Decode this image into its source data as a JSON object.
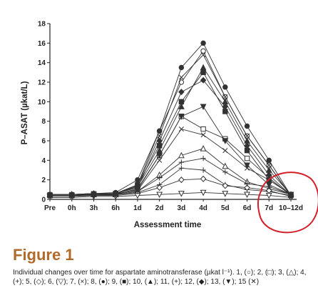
{
  "figure": {
    "title": "Figure 1",
    "caption": "Individual changes over time for aspartate aminotransferase (µkat l⁻¹). 1, (○); 2, (□); 3, (△); 4, (+); 5, (◇); 6, (▽); 7, (×); 8, (●); 9, (■); 10, (▲); 11, (+); 12, (◆); 13, (▼); 15 (✕)"
  },
  "colors": {
    "axis": "#222222",
    "series": "#333333",
    "annotation": "#d4202a",
    "title": "#b06a2a"
  },
  "chart_data": {
    "type": "line",
    "ylabel": "P–ASAT (µkat/L)",
    "xlabel": "Assessment time",
    "categories": [
      "Pre",
      "0h",
      "3h",
      "6h",
      "1d",
      "2d",
      "3d",
      "4d",
      "5d",
      "6d",
      "7d",
      "10–12d"
    ],
    "ylim": [
      0,
      18
    ],
    "yticks": [
      0,
      2,
      4,
      6,
      8,
      10,
      12,
      14,
      16,
      18
    ],
    "grid": false,
    "legend": "none",
    "annotation": "red-circle-around-10-12d",
    "series": [
      {
        "marker": "circle-open",
        "values": [
          0.5,
          0.5,
          0.5,
          0.6,
          1.5,
          7,
          12,
          15.2,
          10.5,
          6.5,
          3.5,
          0.3
        ]
      },
      {
        "marker": "square-open",
        "values": [
          0.4,
          0.4,
          0.5,
          0.5,
          1.1,
          4.5,
          8.5,
          7.2,
          6.2,
          4.2,
          2.2,
          0.4
        ]
      },
      {
        "marker": "triangle-open",
        "values": [
          0.5,
          0.5,
          0.5,
          0.5,
          0.8,
          2.5,
          4.5,
          5.2,
          3.4,
          1.8,
          1.1,
          0.5
        ]
      },
      {
        "marker": "plus",
        "values": [
          0.4,
          0.4,
          0.4,
          0.5,
          0.7,
          1.5,
          3.2,
          3.0,
          1.5,
          1.0,
          0.8,
          0.4
        ]
      },
      {
        "marker": "diamond-open",
        "values": [
          0.3,
          0.3,
          0.4,
          0.4,
          0.6,
          1.2,
          2.0,
          2.1,
          1.4,
          1.2,
          0.9,
          0.3
        ]
      },
      {
        "marker": "tri-down-open",
        "values": [
          0.2,
          0.2,
          0.3,
          0.3,
          0.4,
          0.5,
          0.6,
          0.7,
          0.6,
          0.5,
          0.4,
          0.2
        ]
      },
      {
        "marker": "x",
        "values": [
          0.5,
          0.5,
          0.6,
          0.6,
          0.9,
          4.0,
          7.2,
          6.6,
          5.0,
          3.2,
          2.0,
          0.5
        ]
      },
      {
        "marker": "circle-filled",
        "values": [
          0.5,
          0.5,
          0.6,
          0.7,
          2.0,
          7.0,
          13.5,
          16.0,
          11.5,
          7.5,
          4.0,
          0.4
        ]
      },
      {
        "marker": "square-filled",
        "values": [
          0.4,
          0.4,
          0.5,
          0.6,
          1.5,
          5.5,
          10.0,
          13.0,
          9.0,
          5.0,
          2.0,
          0.5
        ]
      },
      {
        "marker": "triangle-filled",
        "values": [
          0.5,
          0.5,
          0.5,
          0.6,
          1.3,
          5.0,
          9.5,
          13.5,
          10.0,
          6.0,
          3.0,
          0.5
        ]
      },
      {
        "marker": "plus",
        "values": [
          0.4,
          0.4,
          0.4,
          0.5,
          0.8,
          2.2,
          3.8,
          4.2,
          2.8,
          1.6,
          1.3,
          0.5
        ]
      },
      {
        "marker": "diamond-filled",
        "values": [
          0.5,
          0.5,
          0.6,
          0.6,
          1.2,
          6.0,
          11.0,
          12.2,
          9.5,
          5.5,
          2.5,
          0.4
        ]
      },
      {
        "marker": "tri-down-filled",
        "values": [
          0.4,
          0.4,
          0.5,
          0.5,
          1.0,
          4.5,
          8.5,
          9.5,
          6.0,
          3.5,
          1.5,
          0.5
        ]
      },
      {
        "marker": "x",
        "values": [
          0.5,
          0.5,
          0.6,
          0.6,
          1.4,
          6.5,
          12.5,
          14.8,
          10.5,
          6.5,
          3.5,
          0.4
        ]
      }
    ]
  }
}
